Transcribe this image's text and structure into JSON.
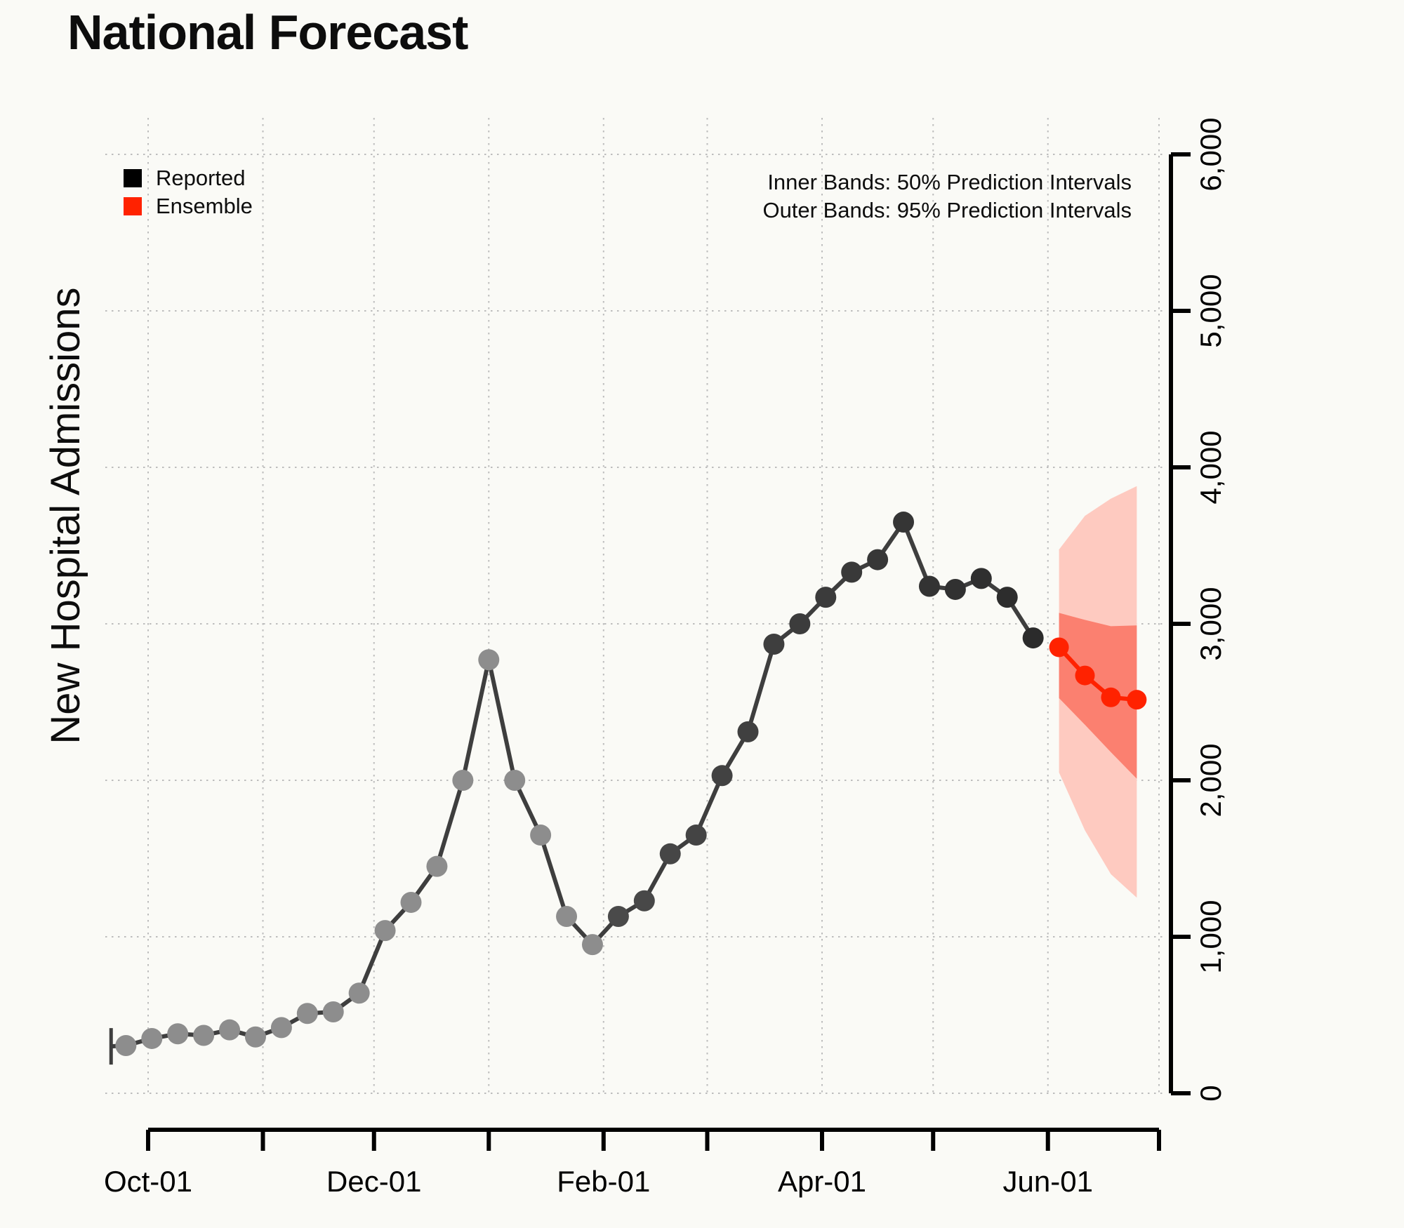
{
  "title": "National Forecast",
  "y_axis_title": "New Hospital Admissions",
  "legend": {
    "items": [
      {
        "label": "Reported",
        "color": "#000000"
      },
      {
        "label": "Ensemble",
        "color": "#FF2200"
      }
    ]
  },
  "annotations": {
    "line1": "Inner Bands: 50% Prediction Intervals",
    "line2": "Outer Bands: 95% Prediction Intervals"
  },
  "colors": {
    "background": "#FAFAF6",
    "grid": "#BDBDBD",
    "axis": "#000000",
    "reported_line": "#3E3E3E",
    "reported_point_early": "#8D8D8D",
    "reported_point_recent_start": "#4A4A4A",
    "reported_point_recent_end": "#2B2B2B",
    "ensemble": "#FF2200",
    "band_inner_50": "#FB8070",
    "band_outer_95": "#FECAC0"
  },
  "chart_data": {
    "type": "line",
    "title": "National Forecast",
    "xlabel": "",
    "ylabel": "New Hospital Admissions",
    "ylim": [
      0,
      6000
    ],
    "grid": true,
    "legend_position": "top-left",
    "y_ticks": [
      {
        "value": 0,
        "label": "0"
      },
      {
        "value": 1000,
        "label": "1,000"
      },
      {
        "value": 2000,
        "label": "2,000"
      },
      {
        "value": 3000,
        "label": "3,000"
      },
      {
        "value": 4000,
        "label": "4,000"
      },
      {
        "value": 5000,
        "label": "5,000"
      },
      {
        "value": 6000,
        "label": "6,000"
      }
    ],
    "x_ticks": [
      {
        "day": 0,
        "label": "Oct-01"
      },
      {
        "day": 31,
        "label": ""
      },
      {
        "day": 61,
        "label": "Dec-01"
      },
      {
        "day": 92,
        "label": ""
      },
      {
        "day": 123,
        "label": "Feb-01"
      },
      {
        "day": 151,
        "label": ""
      },
      {
        "day": 182,
        "label": "Apr-01"
      },
      {
        "day": 212,
        "label": ""
      },
      {
        "day": 243,
        "label": "Jun-01"
      },
      {
        "day": 273,
        "label": ""
      }
    ],
    "series": [
      {
        "name": "Reported",
        "type": "points+line",
        "start_day": -6,
        "step_days": 7,
        "lead_in": {
          "day": -10,
          "value": 300
        },
        "values": [
          305,
          350,
          380,
          370,
          405,
          360,
          420,
          510,
          520,
          640,
          1040,
          1220,
          1450,
          2000,
          2770,
          2000,
          1650,
          1130,
          950,
          1130,
          1230,
          1530,
          1650,
          2030,
          2310,
          2870,
          3000,
          3170,
          3330,
          3410,
          3650,
          3240,
          3220,
          3290,
          3170,
          2910
        ],
        "recent_dark_from_index": 19
      },
      {
        "name": "Ensemble",
        "type": "points+line",
        "start_day": 246,
        "step_days": 7,
        "values": [
          2850,
          2670,
          2530,
          2515
        ]
      }
    ],
    "bands": [
      {
        "name": "Outer Bands: 95% Prediction Intervals",
        "start_day": 246,
        "step_days": 7,
        "upper": [
          3475,
          3690,
          3800,
          3880
        ],
        "lower": [
          2050,
          1680,
          1400,
          1250
        ]
      },
      {
        "name": "Inner Bands: 50% Prediction Intervals",
        "start_day": 246,
        "step_days": 7,
        "upper": [
          3070,
          3025,
          2985,
          2990
        ],
        "lower": [
          2525,
          2355,
          2180,
          2010
        ]
      }
    ]
  }
}
